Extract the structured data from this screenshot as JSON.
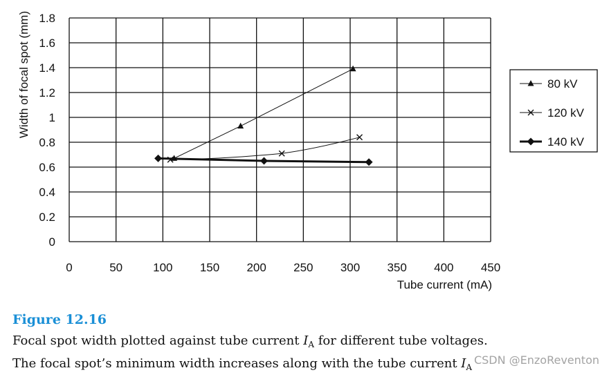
{
  "chart_data": {
    "type": "line",
    "xlabel": "Tube current (mA)",
    "ylabel": "Width of focal spot (mm)",
    "xlim": [
      0,
      450
    ],
    "ylim": [
      0,
      1.8
    ],
    "xticks": [
      "0",
      "50",
      "100",
      "150",
      "200",
      "250",
      "300",
      "350",
      "400",
      "450"
    ],
    "yticks": [
      "0",
      "0.2",
      "0.4",
      "0.6",
      "0.8",
      "1",
      "1.2",
      "1.4",
      "1.6",
      "1.8"
    ],
    "grid": true,
    "legend_position": "right",
    "series": [
      {
        "name": "80 kV",
        "marker": "triangle",
        "color": "#111111",
        "width": "thin",
        "x": [
          112,
          183,
          303
        ],
        "y": [
          0.67,
          0.93,
          1.39
        ]
      },
      {
        "name": "120 kV",
        "marker": "cross",
        "color": "#111111",
        "width": "thin",
        "x": [
          108,
          227,
          310
        ],
        "y": [
          0.66,
          0.71,
          0.84
        ]
      },
      {
        "name": "140 kV",
        "marker": "diamond",
        "color": "#111111",
        "width": "thick",
        "x": [
          95,
          208,
          320
        ],
        "y": [
          0.67,
          0.65,
          0.64
        ]
      }
    ]
  },
  "caption": {
    "figure_label": "Figure 12.16",
    "line1_before": "Focal spot width plotted against tube current ",
    "symbol": "I",
    "subscript": "A",
    "line1_after": " for different tube voltages.",
    "line2": "The focal spot’s minimum width increases along with the tube current "
  },
  "watermark": "CSDN @EnzoReventon"
}
